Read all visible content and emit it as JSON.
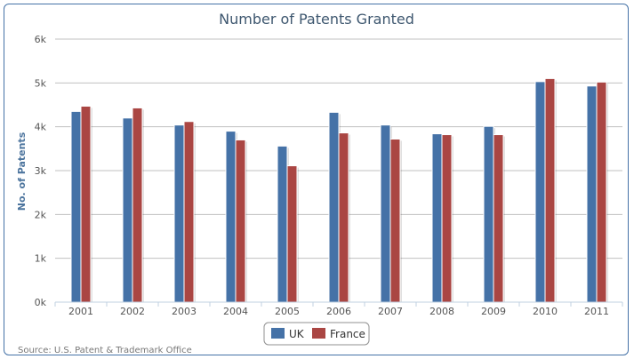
{
  "chart_data": {
    "type": "bar",
    "title": "Number of Patents Granted",
    "xlabel": "",
    "ylabel": "No. of Patents",
    "categories": [
      "2001",
      "2002",
      "2003",
      "2004",
      "2005",
      "2006",
      "2007",
      "2008",
      "2009",
      "2010",
      "2011"
    ],
    "series": [
      {
        "name": "UK",
        "color": "#4572a7",
        "values": [
          4350,
          4200,
          4040,
          3900,
          3560,
          4330,
          4040,
          3840,
          4010,
          5030,
          4930
        ]
      },
      {
        "name": "France",
        "color": "#aa4643",
        "values": [
          4470,
          4430,
          4120,
          3700,
          3110,
          3860,
          3720,
          3820,
          3820,
          5100,
          5020
        ]
      }
    ],
    "ylim": [
      0,
      6000
    ],
    "yticks": [
      {
        "value": 0,
        "label": "0k"
      },
      {
        "value": 1000,
        "label": "1k"
      },
      {
        "value": 2000,
        "label": "2k"
      },
      {
        "value": 3000,
        "label": "3k"
      },
      {
        "value": 4000,
        "label": "4k"
      },
      {
        "value": 5000,
        "label": "5k"
      },
      {
        "value": 6000,
        "label": "6k"
      }
    ],
    "grid": true,
    "legend": "bottom-center",
    "source": "Source: U.S. Patent & Trademark Office"
  }
}
